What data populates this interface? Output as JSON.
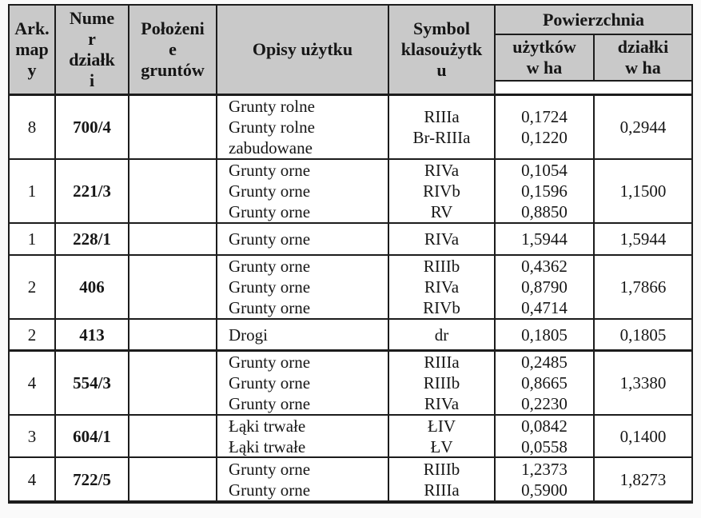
{
  "colors": {
    "header_bg": "#c9c9c9",
    "border": "#1c1c1c",
    "page_bg": "#fafafa"
  },
  "table": {
    "header": {
      "col_ark": "Ark.\nmap\ny",
      "col_numer": "Nume\nr\ndziałk\ni",
      "col_polozenie": "Położeni\ne\ngruntów",
      "col_opisy": "Opisy użytku",
      "col_symbol": "Symbol\nklasoużytk\nu",
      "col_powierzchnia": "Powierzchnia",
      "col_uzytkow": "użytków\nw ha",
      "col_dzialki": "działki\nw ha"
    },
    "rows": [
      {
        "ark": "8",
        "parcel": "700/4",
        "location": "",
        "uses": [
          {
            "opis": "Grunty  rolne",
            "symbol": "RIIIa",
            "area": "0,1724"
          },
          {
            "opis": "Grunty rolne\nzabudowane",
            "symbol": "Br-RIIIa",
            "area": "0,1220"
          }
        ],
        "parcel_area": "0,2944"
      },
      {
        "ark": "1",
        "parcel": "221/3",
        "location": "",
        "uses": [
          {
            "opis": "Grunty orne",
            "symbol": "RIVa",
            "area": "0,1054"
          },
          {
            "opis": "Grunty orne",
            "symbol": "RIVb",
            "area": "0,1596"
          },
          {
            "opis": "Grunty orne",
            "symbol": "RV",
            "area": "0,8850"
          }
        ],
        "parcel_area": "1,1500"
      },
      {
        "ark": "1",
        "parcel": "228/1",
        "location": "",
        "uses": [
          {
            "opis": "Grunty orne",
            "symbol": "RIVa",
            "area": "1,5944"
          }
        ],
        "parcel_area": "1,5944"
      },
      {
        "ark": "2",
        "parcel": "406",
        "location": "",
        "uses": [
          {
            "opis": "Grunty orne",
            "symbol": "RIIIb",
            "area": "0,4362"
          },
          {
            "opis": "Grunty orne",
            "symbol": "RIVa",
            "area": "0,8790"
          },
          {
            "opis": "Grunty orne",
            "symbol": "RIVb",
            "area": "0,4714"
          }
        ],
        "parcel_area": "1,7866"
      },
      {
        "ark": "2",
        "parcel": "413",
        "location": "",
        "uses": [
          {
            "opis": "Drogi",
            "symbol": "dr",
            "area": "0,1805"
          }
        ],
        "parcel_area": "0,1805"
      },
      {
        "ark": "4",
        "parcel": "554/3",
        "location": "",
        "uses": [
          {
            "opis": "Grunty orne",
            "symbol": "RIIIa",
            "area": "0,2485"
          },
          {
            "opis": "Grunty orne",
            "symbol": "RIIIb",
            "area": "0,8665"
          },
          {
            "opis": "Grunty orne",
            "symbol": "RIVa",
            "area": "0,2230"
          }
        ],
        "parcel_area": "1,3380"
      },
      {
        "ark": "3",
        "parcel": "604/1",
        "location": "",
        "uses": [
          {
            "opis": "Łąki trwałe",
            "symbol": "ŁIV",
            "area": "0,0842"
          },
          {
            "opis": "Łąki trwałe",
            "symbol": "ŁV",
            "area": "0,0558"
          }
        ],
        "parcel_area": "0,1400"
      },
      {
        "ark": "4",
        "parcel": "722/5",
        "location": "",
        "uses": [
          {
            "opis": "Grunty orne",
            "symbol": "RIIIb",
            "area": "1,2373"
          },
          {
            "opis": "Grunty orne",
            "symbol": "RIIIa",
            "area": "0,5900"
          }
        ],
        "parcel_area": "1,8273"
      }
    ]
  }
}
